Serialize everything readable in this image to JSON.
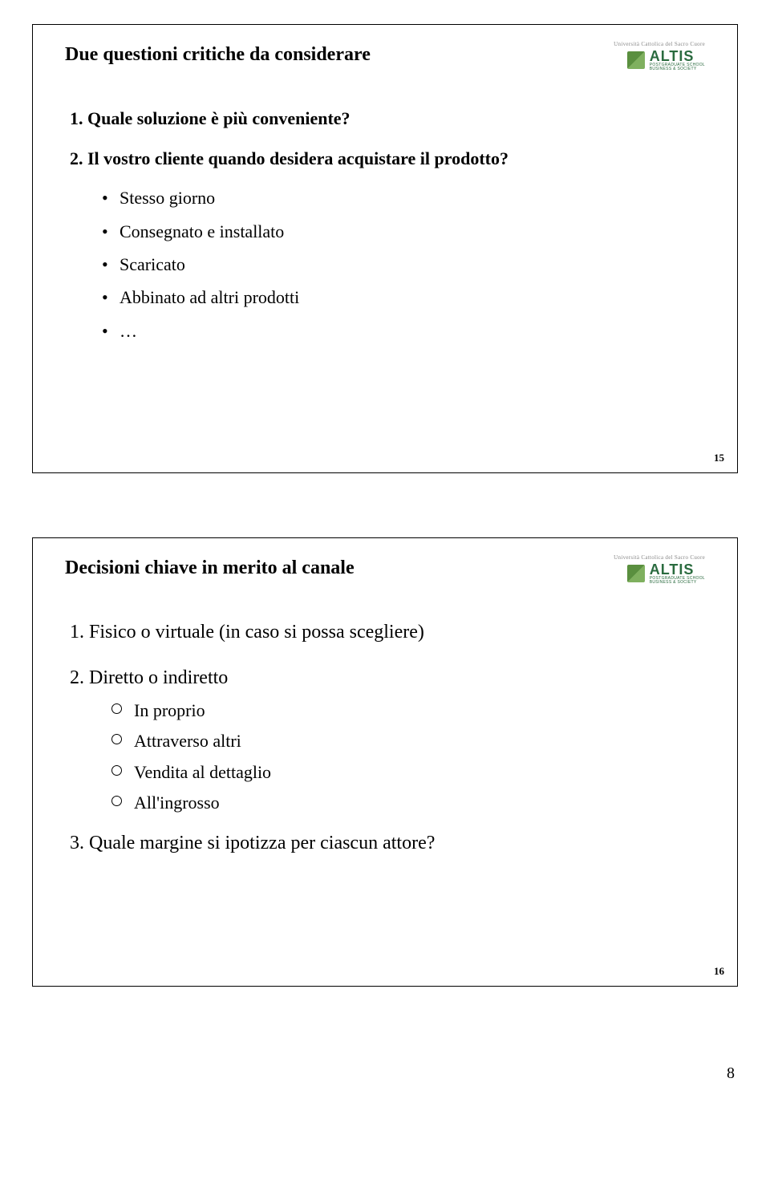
{
  "logo": {
    "topline": "Università Cattolica del Sacro Cuore",
    "name": "ALTIS",
    "sub1": "POSTGRADUATE SCHOOL",
    "sub2": "BUSINESS & SOCIETY"
  },
  "slide1": {
    "title": "Due questioni critiche da considerare",
    "q1_num": "1.",
    "q1": "Quale soluzione è più conveniente?",
    "q2_num": "2.",
    "q2": "Il vostro cliente quando desidera acquistare il prodotto?",
    "bullets": [
      "Stesso giorno",
      "Consegnato e installato",
      "Scaricato",
      "Abbinato ad altri prodotti",
      "…"
    ],
    "slidenum": "15"
  },
  "slide2": {
    "title": "Decisioni chiave in merito al canale",
    "i1_num": "1.",
    "i1": "Fisico o virtuale (in caso si possa scegliere)",
    "i2_num": "2.",
    "i2": "Diretto o indiretto",
    "i2_subs": [
      "In proprio",
      "Attraverso altri",
      "Vendita al dettaglio",
      "All'ingrosso"
    ],
    "i3_num": "3.",
    "i3": "Quale margine si ipotizza per ciascun attore?",
    "slidenum": "16"
  },
  "pagenum": "8"
}
